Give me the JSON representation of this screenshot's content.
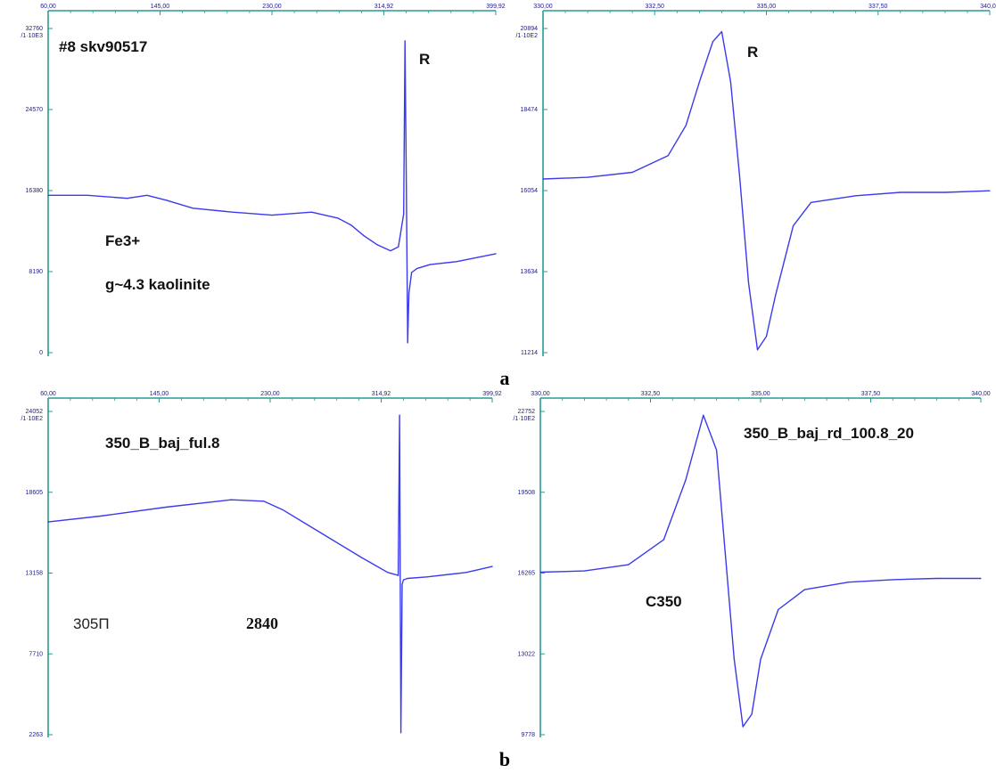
{
  "colors": {
    "axis": "#2a9a92",
    "trace": "#3a3aee",
    "tick_text": "#1a1a8c"
  },
  "panel_labels": {
    "a": "a",
    "b": "b"
  },
  "chart_data": [
    {
      "type": "line",
      "panel": "a-left",
      "x_ticks": [
        "60,00",
        "145,00",
        "230,00",
        "314,92",
        "399,92"
      ],
      "y_ticks": [
        "32760",
        "24570",
        "16380",
        "8190",
        "0"
      ],
      "y_unit": "/1·10E3",
      "xlim": [
        60,
        399.92
      ],
      "ylim": [
        0,
        32760
      ],
      "annotations": [
        "#8 skv90517",
        "R",
        "Fe3+",
        "g~4.3  kaolinite"
      ],
      "series": [
        {
          "x": [
            60,
            90,
            120,
            135,
            150,
            170,
            200,
            230,
            260,
            280,
            290,
            300,
            310,
            320,
            326,
            330,
            331,
            332,
            333,
            334,
            336,
            340,
            350,
            370,
            400
          ],
          "y": [
            15900,
            15900,
            15600,
            15900,
            15400,
            14600,
            14200,
            13900,
            14200,
            13600,
            12900,
            11800,
            10900,
            10300,
            10700,
            14000,
            31500,
            17000,
            1000,
            6000,
            8100,
            8500,
            8900,
            9200,
            10000
          ]
        }
      ]
    },
    {
      "type": "line",
      "panel": "a-right",
      "x_ticks": [
        "330,00",
        "332,50",
        "335,00",
        "337,50",
        "340,00"
      ],
      "y_ticks": [
        "20894",
        "18474",
        "16054",
        "13634",
        "11214"
      ],
      "y_unit": "/1·10E2",
      "xlim": [
        330,
        340
      ],
      "ylim": [
        11214,
        20894
      ],
      "annotations": [
        "R"
      ],
      "series": [
        {
          "x": [
            330,
            331,
            332,
            332.8,
            333.2,
            333.5,
            333.8,
            334.0,
            334.2,
            334.4,
            334.6,
            334.8,
            335.0,
            335.2,
            335.6,
            336,
            337,
            338,
            339,
            340
          ],
          "y": [
            16400,
            16450,
            16600,
            17100,
            18000,
            19300,
            20500,
            20800,
            19300,
            16500,
            13300,
            11300,
            11700,
            12900,
            15000,
            15700,
            15900,
            16000,
            16000,
            16050
          ]
        }
      ]
    },
    {
      "type": "line",
      "panel": "b-left",
      "x_ticks": [
        "60,00",
        "145,00",
        "230,00",
        "314,92",
        "399,92"
      ],
      "y_ticks": [
        "24052",
        "18605",
        "13158",
        "7710",
        "2263"
      ],
      "y_unit": "/1·10E2",
      "xlim": [
        60,
        399.92
      ],
      "ylim": [
        2263,
        24052
      ],
      "annotations": [
        "350_B_baj_ful.8",
        "305П",
        "2840"
      ],
      "series": [
        {
          "x": [
            60,
            100,
            150,
            200,
            225,
            240,
            270,
            300,
            320,
            328,
            329,
            330,
            331,
            332,
            335,
            350,
            380,
            400
          ],
          "y": [
            16600,
            17000,
            17600,
            18100,
            18000,
            17400,
            15800,
            14200,
            13200,
            13000,
            23800,
            2400,
            12400,
            12700,
            12800,
            12900,
            13200,
            13600
          ]
        }
      ]
    },
    {
      "type": "line",
      "panel": "b-right",
      "x_ticks": [
        "330,00",
        "332,50",
        "335,00",
        "337,50",
        "340,00"
      ],
      "y_ticks": [
        "22752",
        "19508",
        "16265",
        "13022",
        "9778"
      ],
      "y_unit": "/1·10E2",
      "xlim": [
        330,
        340
      ],
      "ylim": [
        9778,
        22752
      ],
      "annotations": [
        "350_B_baj_rd_100.8_20",
        "C350"
      ],
      "series": [
        {
          "x": [
            330,
            331,
            332,
            332.8,
            333.3,
            333.7,
            334.0,
            334.2,
            334.4,
            334.6,
            334.8,
            335.0,
            335.4,
            336,
            337,
            338,
            339,
            340
          ],
          "y": [
            16300,
            16350,
            16600,
            17600,
            20000,
            22600,
            21200,
            17000,
            12800,
            10100,
            10600,
            12800,
            14800,
            15600,
            15900,
            16000,
            16050,
            16050
          ]
        }
      ]
    }
  ]
}
